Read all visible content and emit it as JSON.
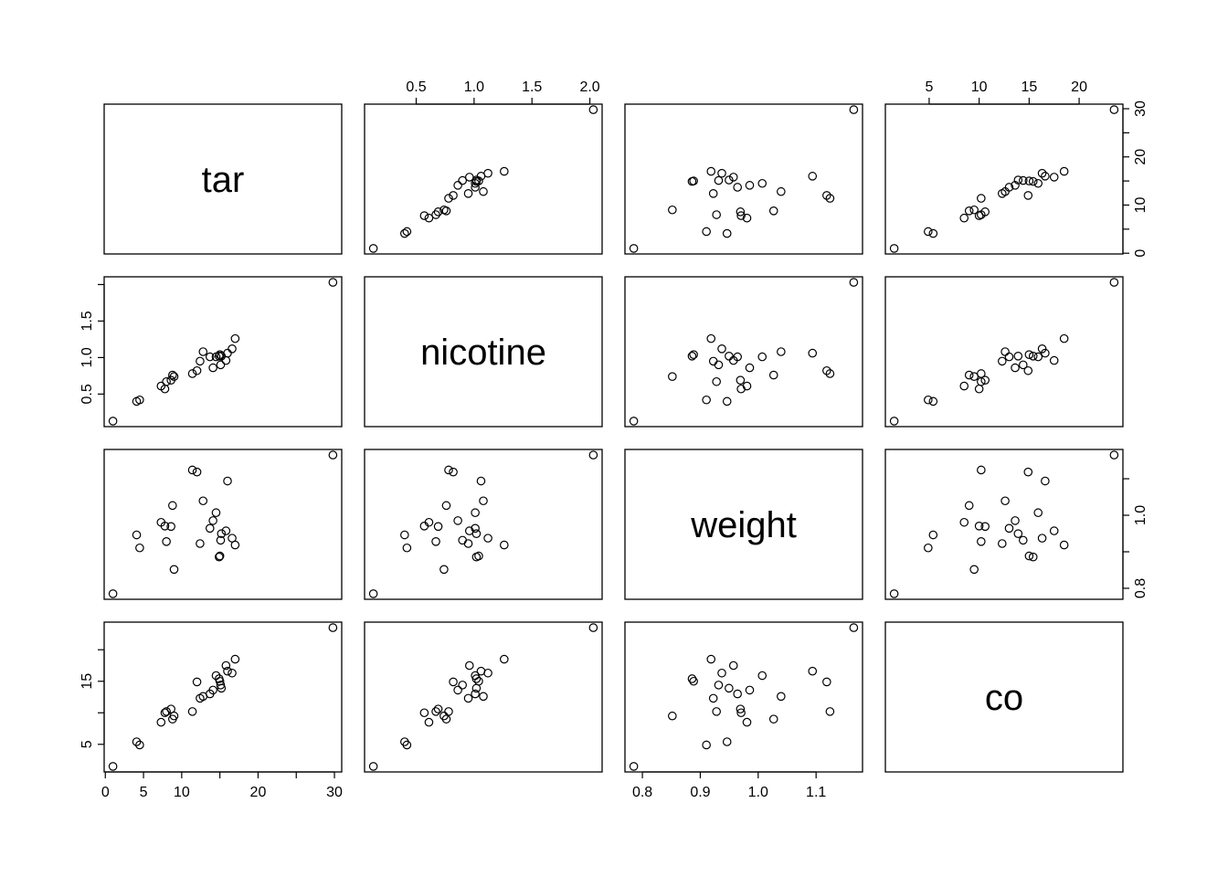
{
  "chart_data": {
    "type": "scatter",
    "title": "",
    "variables": [
      "tar",
      "nicotine",
      "weight",
      "co"
    ],
    "axes": {
      "tar": {
        "ticks": [
          0,
          5,
          10,
          15,
          20,
          25,
          30
        ],
        "labels": [
          "0",
          "5",
          "10",
          "20",
          "30"
        ],
        "label_values": [
          0,
          5,
          10,
          20,
          30
        ]
      },
      "nicotine": {
        "ticks": [
          0.5,
          1.0,
          1.5,
          2.0
        ],
        "labels": [
          "0.5",
          "1.0",
          "1.5",
          "2.0"
        ],
        "label_values": [
          0.5,
          1.0,
          1.5,
          2.0
        ]
      },
      "weight": {
        "ticks": [
          0.8,
          0.9,
          1.0,
          1.1
        ],
        "labels": [
          "0.8",
          "0.9",
          "1.0",
          "1.1"
        ],
        "label_values": [
          0.8,
          0.9,
          1.0,
          1.1
        ]
      },
      "co": {
        "ticks": [
          5,
          10,
          15,
          20
        ],
        "labels": [
          "5",
          "10",
          "15",
          "20"
        ],
        "label_values": [
          5,
          10,
          15,
          20
        ]
      }
    },
    "row_axis_labels": {
      "tar": {
        "labels": [
          "0",
          "10",
          "20",
          "30"
        ],
        "label_values": [
          0,
          10,
          20,
          30
        ]
      },
      "nicotine": {
        "labels": [
          "0.5",
          "1.0",
          "1.5"
        ],
        "label_values": [
          0.5,
          1.0,
          1.5
        ]
      },
      "weight": {
        "labels": [
          "0.8",
          "1.0"
        ],
        "label_values": [
          0.8,
          1.0
        ]
      },
      "co": {
        "labels": [
          "5",
          "15"
        ],
        "label_values": [
          5,
          15
        ]
      }
    },
    "data": {
      "tar": [
        14.1,
        16.0,
        29.8,
        8.0,
        4.1,
        15.0,
        8.8,
        12.4,
        16.6,
        14.9,
        13.7,
        15.1,
        7.8,
        11.4,
        9.0,
        1.0,
        17.0,
        12.8,
        15.8,
        4.5,
        14.5,
        7.3,
        8.6,
        15.2,
        12.0
      ],
      "nicotine": [
        0.86,
        1.06,
        2.03,
        0.67,
        0.4,
        1.04,
        0.76,
        0.95,
        1.12,
        1.02,
        1.01,
        0.9,
        0.57,
        0.78,
        0.74,
        0.13,
        1.26,
        1.08,
        0.96,
        0.42,
        1.01,
        0.61,
        0.69,
        1.02,
        0.82
      ],
      "weight": [
        0.9853,
        1.0938,
        1.165,
        0.928,
        0.9462,
        0.8885,
        1.0267,
        0.9225,
        0.9372,
        0.8858,
        0.9643,
        0.9316,
        0.9705,
        1.124,
        0.8517,
        0.7851,
        0.9186,
        1.0395,
        0.9573,
        0.9106,
        1.007,
        0.9806,
        0.9693,
        0.9496,
        1.1184
      ],
      "co": [
        13.6,
        16.6,
        23.5,
        10.2,
        5.4,
        15.0,
        9.0,
        12.3,
        16.3,
        15.4,
        13.0,
        14.4,
        10.0,
        10.2,
        9.5,
        1.5,
        18.5,
        12.6,
        17.5,
        4.9,
        15.9,
        8.5,
        10.6,
        13.9,
        14.9
      ]
    }
  }
}
